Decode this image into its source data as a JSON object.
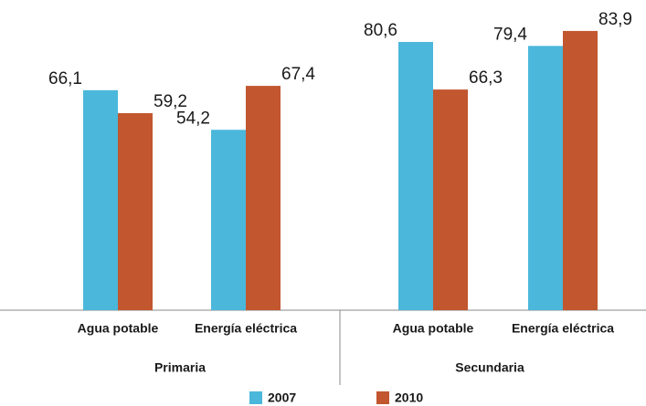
{
  "chart_data": {
    "type": "bar",
    "categories": [
      "Agua potable",
      "Energía eléctrica",
      "Agua potable",
      "Energía eléctrica"
    ],
    "groups": [
      "Primaria",
      "Secundaria"
    ],
    "series": [
      {
        "name": "2007",
        "color": "#4bb7db",
        "values": [
          66.1,
          54.2,
          80.6,
          79.4
        ],
        "value_labels": [
          "66,1",
          "54,2",
          "80,6",
          "79,4"
        ]
      },
      {
        "name": "2010",
        "color": "#c1562f",
        "values": [
          59.2,
          67.4,
          66.3,
          83.9
        ],
        "value_labels": [
          "59,2",
          "67,4",
          "66,3",
          "83,9"
        ]
      }
    ],
    "ylim": [
      0,
      93.2
    ]
  }
}
